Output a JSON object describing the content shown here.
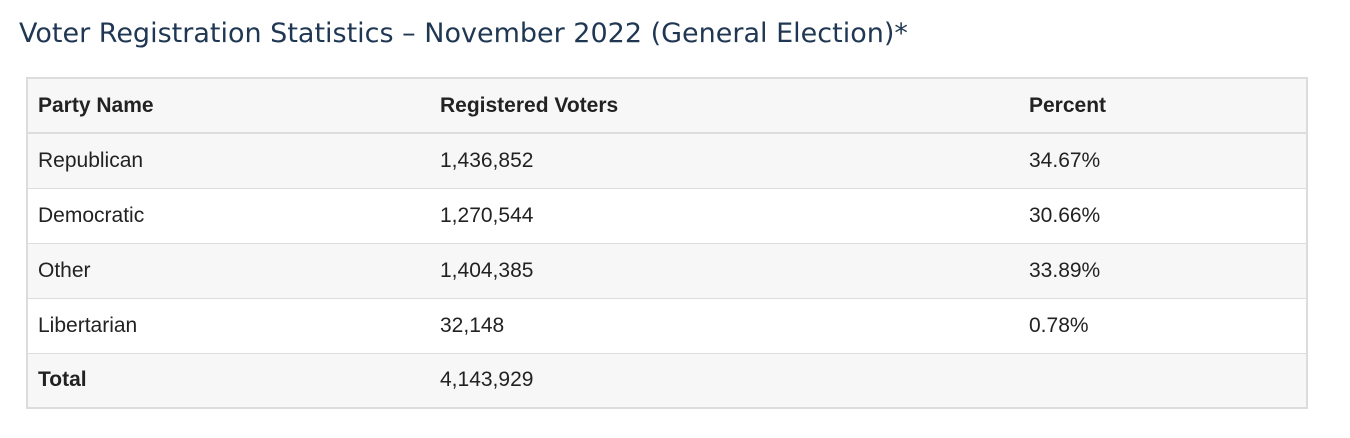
{
  "page": {
    "title": "Voter Registration Statistics – November 2022 (General Election)*"
  },
  "table": {
    "headers": {
      "party": "Party Name",
      "voters": "Registered Voters",
      "percent": "Percent"
    },
    "rows": [
      {
        "party": "Republican",
        "voters": "1,436,852",
        "percent": "34.67%"
      },
      {
        "party": "Democratic",
        "voters": "1,270,544",
        "percent": "30.66%"
      },
      {
        "party": "Other",
        "voters": "1,404,385",
        "percent": "33.89%"
      },
      {
        "party": "Libertarian",
        "voters": "32,148",
        "percent": "0.78%"
      }
    ],
    "total": {
      "label": "Total",
      "voters": "4,143,929",
      "percent": ""
    }
  },
  "colors": {
    "title": "#1f3752",
    "text": "#222222",
    "stripe": "#f7f7f7",
    "border": "#dddddd"
  }
}
